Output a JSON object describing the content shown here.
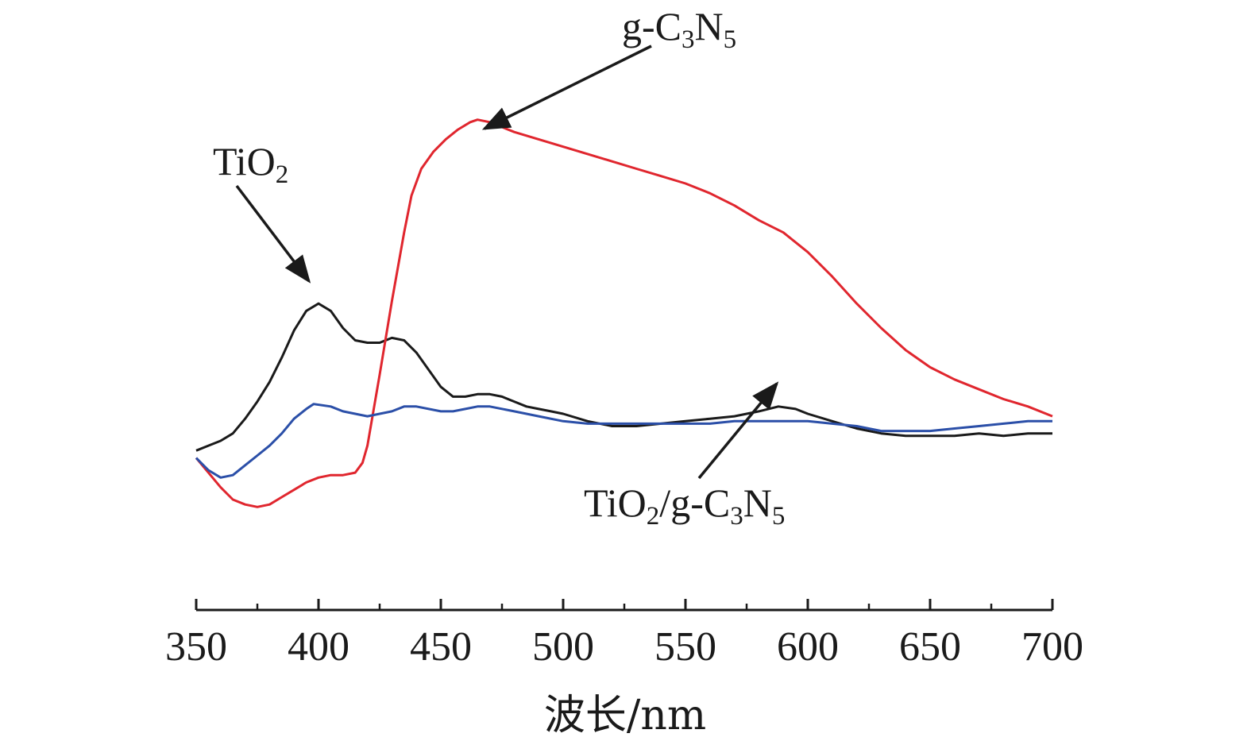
{
  "chart_data": {
    "type": "line",
    "title": "",
    "xlabel": "波长/nm",
    "ylabel": "",
    "xlim": [
      350,
      700
    ],
    "ylim": [
      -0.4,
      1.35
    ],
    "xticks": [
      "350",
      "400",
      "450",
      "500",
      "550",
      "600",
      "650",
      "700"
    ],
    "grid": false,
    "series": [
      {
        "name": "TiO2",
        "color": "#1a1a1a",
        "points": [
          [
            350,
            0.03
          ],
          [
            355,
            0.05
          ],
          [
            360,
            0.07
          ],
          [
            365,
            0.1
          ],
          [
            370,
            0.16
          ],
          [
            375,
            0.23
          ],
          [
            380,
            0.31
          ],
          [
            385,
            0.41
          ],
          [
            390,
            0.52
          ],
          [
            395,
            0.6
          ],
          [
            400,
            0.63
          ],
          [
            405,
            0.6
          ],
          [
            410,
            0.53
          ],
          [
            415,
            0.48
          ],
          [
            420,
            0.47
          ],
          [
            425,
            0.47
          ],
          [
            430,
            0.49
          ],
          [
            435,
            0.48
          ],
          [
            440,
            0.43
          ],
          [
            445,
            0.36
          ],
          [
            450,
            0.29
          ],
          [
            455,
            0.25
          ],
          [
            460,
            0.25
          ],
          [
            465,
            0.26
          ],
          [
            470,
            0.26
          ],
          [
            475,
            0.25
          ],
          [
            480,
            0.23
          ],
          [
            485,
            0.21
          ],
          [
            490,
            0.2
          ],
          [
            495,
            0.19
          ],
          [
            500,
            0.18
          ],
          [
            510,
            0.15
          ],
          [
            520,
            0.13
          ],
          [
            530,
            0.13
          ],
          [
            540,
            0.14
          ],
          [
            550,
            0.15
          ],
          [
            560,
            0.16
          ],
          [
            570,
            0.17
          ],
          [
            580,
            0.19
          ],
          [
            588,
            0.21
          ],
          [
            595,
            0.2
          ],
          [
            600,
            0.18
          ],
          [
            610,
            0.15
          ],
          [
            620,
            0.12
          ],
          [
            630,
            0.1
          ],
          [
            640,
            0.09
          ],
          [
            650,
            0.09
          ],
          [
            660,
            0.09
          ],
          [
            670,
            0.1
          ],
          [
            680,
            0.09
          ],
          [
            690,
            0.1
          ],
          [
            700,
            0.1
          ]
        ]
      },
      {
        "name": "g-C3N5",
        "color": "#e0262e",
        "points": [
          [
            350,
            0.0
          ],
          [
            355,
            -0.06
          ],
          [
            360,
            -0.12
          ],
          [
            365,
            -0.17
          ],
          [
            370,
            -0.19
          ],
          [
            375,
            -0.2
          ],
          [
            380,
            -0.19
          ],
          [
            385,
            -0.16
          ],
          [
            390,
            -0.13
          ],
          [
            395,
            -0.1
          ],
          [
            400,
            -0.08
          ],
          [
            405,
            -0.07
          ],
          [
            410,
            -0.07
          ],
          [
            415,
            -0.06
          ],
          [
            418,
            -0.02
          ],
          [
            420,
            0.05
          ],
          [
            425,
            0.34
          ],
          [
            430,
            0.64
          ],
          [
            435,
            0.92
          ],
          [
            438,
            1.07
          ],
          [
            442,
            1.18
          ],
          [
            447,
            1.25
          ],
          [
            452,
            1.3
          ],
          [
            457,
            1.34
          ],
          [
            462,
            1.37
          ],
          [
            465,
            1.38
          ],
          [
            470,
            1.37
          ],
          [
            475,
            1.35
          ],
          [
            480,
            1.33
          ],
          [
            490,
            1.3
          ],
          [
            500,
            1.27
          ],
          [
            510,
            1.24
          ],
          [
            520,
            1.21
          ],
          [
            530,
            1.18
          ],
          [
            540,
            1.15
          ],
          [
            550,
            1.12
          ],
          [
            560,
            1.08
          ],
          [
            570,
            1.03
          ],
          [
            580,
            0.97
          ],
          [
            590,
            0.92
          ],
          [
            600,
            0.84
          ],
          [
            610,
            0.74
          ],
          [
            620,
            0.63
          ],
          [
            630,
            0.53
          ],
          [
            640,
            0.44
          ],
          [
            650,
            0.37
          ],
          [
            660,
            0.32
          ],
          [
            670,
            0.28
          ],
          [
            680,
            0.24
          ],
          [
            690,
            0.21
          ],
          [
            700,
            0.17
          ]
        ]
      },
      {
        "name": "TiO2/g-C3N5",
        "color": "#2b4fa8",
        "points": [
          [
            350,
            0.0
          ],
          [
            355,
            -0.05
          ],
          [
            360,
            -0.08
          ],
          [
            365,
            -0.07
          ],
          [
            370,
            -0.03
          ],
          [
            375,
            0.01
          ],
          [
            380,
            0.05
          ],
          [
            385,
            0.1
          ],
          [
            390,
            0.16
          ],
          [
            395,
            0.2
          ],
          [
            398,
            0.22
          ],
          [
            405,
            0.21
          ],
          [
            410,
            0.19
          ],
          [
            420,
            0.17
          ],
          [
            430,
            0.19
          ],
          [
            435,
            0.21
          ],
          [
            440,
            0.21
          ],
          [
            450,
            0.19
          ],
          [
            455,
            0.19
          ],
          [
            460,
            0.2
          ],
          [
            465,
            0.21
          ],
          [
            470,
            0.21
          ],
          [
            480,
            0.19
          ],
          [
            490,
            0.17
          ],
          [
            500,
            0.15
          ],
          [
            510,
            0.14
          ],
          [
            520,
            0.14
          ],
          [
            530,
            0.14
          ],
          [
            540,
            0.14
          ],
          [
            550,
            0.14
          ],
          [
            560,
            0.14
          ],
          [
            570,
            0.15
          ],
          [
            580,
            0.15
          ],
          [
            590,
            0.15
          ],
          [
            600,
            0.15
          ],
          [
            610,
            0.14
          ],
          [
            620,
            0.13
          ],
          [
            630,
            0.11
          ],
          [
            640,
            0.11
          ],
          [
            650,
            0.11
          ],
          [
            660,
            0.12
          ],
          [
            670,
            0.13
          ],
          [
            680,
            0.14
          ],
          [
            690,
            0.15
          ],
          [
            700,
            0.15
          ]
        ]
      }
    ],
    "annotations": [
      {
        "text": "g-C3N5",
        "main": "g-C",
        "sub1": "3",
        "mid": "N",
        "sub2": "5",
        "tail": "",
        "series": "g-C3N5"
      },
      {
        "text": "TiO2",
        "main": "TiO",
        "sub1": "2",
        "mid": "",
        "sub2": "",
        "tail": "",
        "series": "TiO2"
      },
      {
        "text": "TiO2/g-C3N5",
        "main": "TiO",
        "sub1": "2",
        "mid": "/g-C",
        "sub2": "3",
        "tail": "N",
        "sub3": "5",
        "series": "TiO2/g-C3N5"
      }
    ]
  }
}
